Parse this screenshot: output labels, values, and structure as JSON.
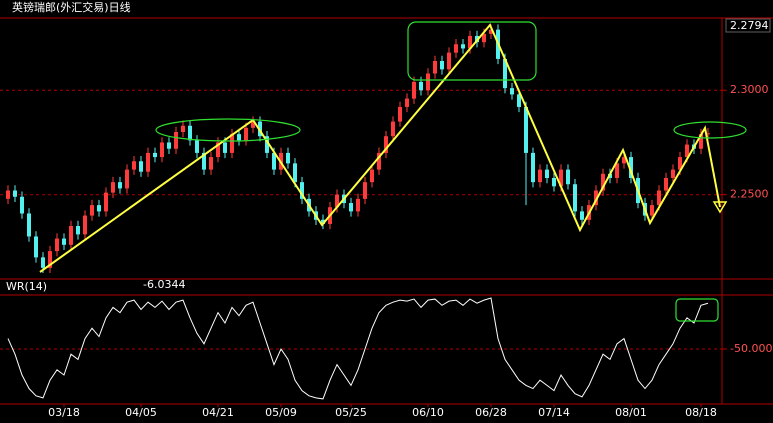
{
  "chart_data": [
    {
      "type": "candlestick",
      "title": "英镑瑞郎(外汇交易)日线",
      "categories": [
        null,
        null,
        null,
        null,
        null,
        null,
        null,
        null,
        "03/18",
        null,
        null,
        null,
        null,
        null,
        null,
        null,
        null,
        null,
        null,
        "04/05",
        null,
        null,
        null,
        null,
        null,
        null,
        null,
        null,
        null,
        null,
        "04/21",
        null,
        null,
        null,
        null,
        null,
        null,
        null,
        null,
        "05/09",
        null,
        null,
        null,
        null,
        null,
        null,
        null,
        null,
        null,
        "05/25",
        null,
        null,
        null,
        null,
        null,
        null,
        null,
        null,
        null,
        null,
        "06/10",
        null,
        null,
        null,
        null,
        null,
        null,
        null,
        null,
        "06/28",
        null,
        null,
        null,
        null,
        null,
        null,
        null,
        null,
        "07/14",
        null,
        null,
        null,
        null,
        null,
        null,
        null,
        null,
        null,
        null,
        "08/01",
        null,
        null,
        null,
        null,
        null,
        null,
        null,
        null,
        null,
        "08/18",
        null
      ],
      "candles": [
        [
          2.248,
          2.2545,
          2.2455,
          2.252
        ],
        [
          2.252,
          2.2545,
          2.2465,
          2.249
        ],
        [
          2.249,
          2.2515,
          2.2385,
          2.241
        ],
        [
          2.241,
          2.2435,
          2.2275,
          2.23
        ],
        [
          2.23,
          2.2325,
          2.2175,
          2.22
        ],
        [
          2.22,
          2.2225,
          2.2125,
          2.215
        ],
        [
          2.215,
          2.2255,
          2.2125,
          2.223
        ],
        [
          2.223,
          2.2315,
          2.2205,
          2.229
        ],
        [
          2.229,
          2.2315,
          2.2235,
          2.226
        ],
        [
          2.226,
          2.2375,
          2.2235,
          2.235
        ],
        [
          2.235,
          2.2375,
          2.2285,
          2.231
        ],
        [
          2.231,
          2.2425,
          2.2285,
          2.24
        ],
        [
          2.24,
          2.2475,
          2.2375,
          2.245
        ],
        [
          2.245,
          2.2475,
          2.2395,
          2.242
        ],
        [
          2.242,
          2.2535,
          2.2395,
          2.251
        ],
        [
          2.251,
          2.2585,
          2.2485,
          2.256
        ],
        [
          2.256,
          2.2585,
          2.2505,
          2.253
        ],
        [
          2.253,
          2.2645,
          2.2505,
          2.262
        ],
        [
          2.262,
          2.2685,
          2.2595,
          2.266
        ],
        [
          2.266,
          2.2685,
          2.2585,
          2.261
        ],
        [
          2.261,
          2.2725,
          2.2585,
          2.27
        ],
        [
          2.27,
          2.2725,
          2.2655,
          2.268
        ],
        [
          2.268,
          2.2775,
          2.2655,
          2.275
        ],
        [
          2.275,
          2.2775,
          2.2695,
          2.272
        ],
        [
          2.272,
          2.2825,
          2.2695,
          2.28
        ],
        [
          2.28,
          2.2855,
          2.2775,
          2.283
        ],
        [
          2.283,
          2.2855,
          2.2735,
          2.276
        ],
        [
          2.276,
          2.2785,
          2.2675,
          2.27
        ],
        [
          2.27,
          2.2725,
          2.2595,
          2.262
        ],
        [
          2.262,
          2.2705,
          2.2595,
          2.268
        ],
        [
          2.268,
          2.2775,
          2.2655,
          2.275
        ],
        [
          2.275,
          2.2775,
          2.2675,
          2.27
        ],
        [
          2.27,
          2.2815,
          2.2675,
          2.279
        ],
        [
          2.279,
          2.2815,
          2.2735,
          2.276
        ],
        [
          2.276,
          2.2845,
          2.2735,
          2.282
        ],
        [
          2.282,
          2.2875,
          2.2795,
          2.285
        ],
        [
          2.285,
          2.2875,
          2.2755,
          2.278
        ],
        [
          2.278,
          2.2805,
          2.2675,
          2.27
        ],
        [
          2.27,
          2.2725,
          2.2595,
          2.262
        ],
        [
          2.262,
          2.2725,
          2.2595,
          2.27
        ],
        [
          2.27,
          2.2725,
          2.2625,
          2.265
        ],
        [
          2.265,
          2.2675,
          2.2535,
          2.256
        ],
        [
          2.256,
          2.2585,
          2.2455,
          2.248
        ],
        [
          2.248,
          2.2505,
          2.2395,
          2.242
        ],
        [
          2.242,
          2.2445,
          2.2355,
          2.238
        ],
        [
          2.238,
          2.2405,
          2.2335,
          2.236
        ],
        [
          2.236,
          2.2465,
          2.2335,
          2.244
        ],
        [
          2.244,
          2.2525,
          2.2415,
          2.25
        ],
        [
          2.25,
          2.2525,
          2.2435,
          2.246
        ],
        [
          2.246,
          2.2485,
          2.2395,
          2.242
        ],
        [
          2.242,
          2.2505,
          2.2395,
          2.248
        ],
        [
          2.248,
          2.2585,
          2.2455,
          2.256
        ],
        [
          2.256,
          2.2645,
          2.2535,
          2.262
        ],
        [
          2.262,
          2.2725,
          2.2595,
          2.27
        ],
        [
          2.27,
          2.2805,
          2.2675,
          2.278
        ],
        [
          2.278,
          2.2875,
          2.2755,
          2.285
        ],
        [
          2.285,
          2.2945,
          2.2825,
          2.292
        ],
        [
          2.292,
          2.2985,
          2.2895,
          2.296
        ],
        [
          2.296,
          2.3065,
          2.2935,
          2.304
        ],
        [
          2.304,
          2.3065,
          2.2975,
          2.3
        ],
        [
          2.3,
          2.3105,
          2.2975,
          2.308
        ],
        [
          2.308,
          2.3165,
          2.3055,
          2.314
        ],
        [
          2.314,
          2.3165,
          2.3075,
          2.31
        ],
        [
          2.31,
          2.3205,
          2.3075,
          2.318
        ],
        [
          2.318,
          2.3245,
          2.3155,
          2.322
        ],
        [
          2.322,
          2.3245,
          2.3175,
          2.32
        ],
        [
          2.32,
          2.3285,
          2.3175,
          2.326
        ],
        [
          2.326,
          2.3285,
          2.3205,
          2.323
        ],
        [
          2.323,
          2.3295,
          2.3205,
          2.327
        ],
        [
          2.327,
          2.3315,
          2.3245,
          2.329
        ],
        [
          2.329,
          2.3315,
          2.3125,
          2.315
        ],
        [
          2.315,
          2.3175,
          2.2985,
          2.301
        ],
        [
          2.301,
          2.3035,
          2.2955,
          2.298
        ],
        [
          2.298,
          2.3005,
          2.2895,
          2.292
        ],
        [
          2.292,
          2.2945,
          2.245,
          2.27
        ],
        [
          2.27,
          2.2725,
          2.2535,
          2.256
        ],
        [
          2.256,
          2.2645,
          2.2535,
          2.262
        ],
        [
          2.262,
          2.2645,
          2.2555,
          2.258
        ],
        [
          2.258,
          2.2605,
          2.2515,
          2.254
        ],
        [
          2.254,
          2.2645,
          2.2515,
          2.262
        ],
        [
          2.262,
          2.2645,
          2.2525,
          2.255
        ],
        [
          2.255,
          2.2575,
          2.2395,
          2.242
        ],
        [
          2.242,
          2.2445,
          2.2355,
          2.238
        ],
        [
          2.238,
          2.2475,
          2.2355,
          2.245
        ],
        [
          2.245,
          2.2545,
          2.2425,
          2.252
        ],
        [
          2.252,
          2.2625,
          2.2495,
          2.26
        ],
        [
          2.26,
          2.2625,
          2.2555,
          2.258
        ],
        [
          2.258,
          2.2675,
          2.2555,
          2.265
        ],
        [
          2.265,
          2.2705,
          2.2625,
          2.268
        ],
        [
          2.268,
          2.2705,
          2.2555,
          2.258
        ],
        [
          2.258,
          2.2605,
          2.2435,
          2.246
        ],
        [
          2.246,
          2.2485,
          2.2375,
          2.24
        ],
        [
          2.24,
          2.2475,
          2.2375,
          2.245
        ],
        [
          2.245,
          2.2545,
          2.2425,
          2.252
        ],
        [
          2.252,
          2.2605,
          2.2495,
          2.258
        ],
        [
          2.258,
          2.2645,
          2.2555,
          2.262
        ],
        [
          2.262,
          2.2705,
          2.2595,
          2.268
        ],
        [
          2.268,
          2.2765,
          2.2655,
          2.274
        ],
        [
          2.274,
          2.2765,
          2.2695,
          2.272
        ],
        [
          2.272,
          2.2815,
          2.2695,
          2.279
        ],
        [
          2.279,
          2.2819,
          2.2765,
          2.2794
        ]
      ],
      "up_color": "#ff3c3c",
      "down_color": "#54f0f0",
      "ylim": [
        2.2106,
        2.3341
      ],
      "yticks": [
        {
          "value": 2.25,
          "label": "2.2500"
        },
        {
          "value": 2.3,
          "label": "2.3000"
        }
      ],
      "grid": true,
      "grid_color": "#b00000"
    },
    {
      "type": "line",
      "name": "WR(14)",
      "color": "#ffffff",
      "values": [
        -40,
        -55,
        -75,
        -88,
        -95,
        -97,
        -80,
        -70,
        -75,
        -55,
        -60,
        -40,
        -30,
        -38,
        -20,
        -10,
        -15,
        -5,
        -3,
        -12,
        -5,
        -10,
        -4,
        -12,
        -5,
        -3,
        -20,
        -35,
        -45,
        -30,
        -15,
        -25,
        -10,
        -18,
        -8,
        -5,
        -25,
        -45,
        -65,
        -50,
        -60,
        -80,
        -90,
        -95,
        -97,
        -98,
        -80,
        -65,
        -75,
        -85,
        -70,
        -50,
        -30,
        -15,
        -8,
        -5,
        -3,
        -4,
        -2,
        -10,
        -3,
        -2,
        -8,
        -4,
        -3,
        -8,
        -2,
        -6,
        -3,
        -1,
        -40,
        -60,
        -70,
        -80,
        -85,
        -88,
        -80,
        -85,
        -90,
        -75,
        -85,
        -93,
        -96,
        -85,
        -70,
        -55,
        -60,
        -45,
        -40,
        -60,
        -80,
        -88,
        -80,
        -65,
        -55,
        -45,
        -30,
        -20,
        -25,
        -8,
        -6.0344
      ],
      "ylim": [
        -100,
        0
      ],
      "yticks": [
        {
          "value": -50,
          "label": "-50.0000"
        }
      ],
      "grid": true,
      "grid_color": "#b00000"
    }
  ]
}
